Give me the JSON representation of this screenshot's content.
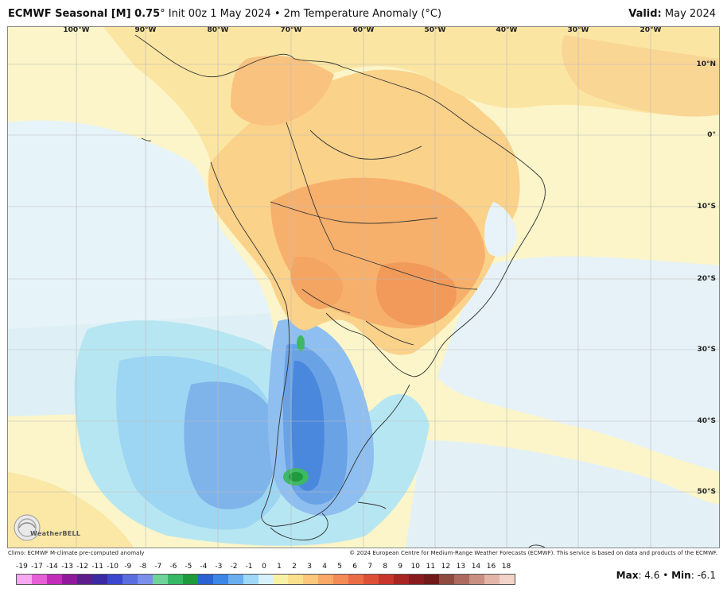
{
  "header": {
    "title_main": "ECMWF Seasonal [M] 0.75",
    "title_rest": "° Init 00z 1 May 2024 • 2m Temperature Anomaly (°C)",
    "valid_label": "Valid:",
    "valid_value": "May 2024"
  },
  "map": {
    "lon_labels": [
      "100°W",
      "90°W",
      "80°W",
      "70°W",
      "60°W",
      "50°W",
      "40°W",
      "30°W",
      "20°W"
    ],
    "lat_labels": [
      "10°N",
      "0°",
      "10°S",
      "20°S",
      "30°S",
      "40°S",
      "50°S"
    ],
    "logo_text": "WeatherBELL"
  },
  "footer": {
    "climo_note": "Climo: ECMWF M-climate pre-computed anomaly",
    "copyright": "© 2024 European Centre for Medium-Range Weather Forecasts (ECMWF). This service is based on data and products of the ECMWF."
  },
  "scale": {
    "ticks": [
      "-19",
      "-17",
      "-14",
      "-13",
      "-12",
      "-11",
      "-10",
      "-9",
      "-8",
      "-7",
      "-6",
      "-5",
      "-4",
      "-3",
      "-2",
      "-1",
      "0",
      "1",
      "2",
      "3",
      "4",
      "5",
      "6",
      "7",
      "8",
      "9",
      "10",
      "11",
      "12",
      "13",
      "14",
      "16",
      "18"
    ],
    "colors": [
      "#f7a8f0",
      "#e65fd8",
      "#c22cb9",
      "#8e1a9b",
      "#5d1e8c",
      "#3b2aa4",
      "#3b47cf",
      "#5b6ee0",
      "#7a90ea",
      "#6fd39a",
      "#37b864",
      "#1d9b3b",
      "#2a63d1",
      "#3b86e6",
      "#6aaef0",
      "#9fd8f6",
      "#d6f1fb",
      "#f7f2a6",
      "#fbe08c",
      "#fcc77a",
      "#f9a867",
      "#f48a56",
      "#ea6d45",
      "#dd4f36",
      "#c7352b",
      "#a92522",
      "#8a1b1d",
      "#6f1a19",
      "#8e4b3e",
      "#ac6b5e",
      "#c98f82",
      "#e2b5a8",
      "#f1d3c8"
    ],
    "max_label": "Max",
    "max_value": "4.6",
    "min_label": "Min",
    "min_value": "-6.1"
  }
}
